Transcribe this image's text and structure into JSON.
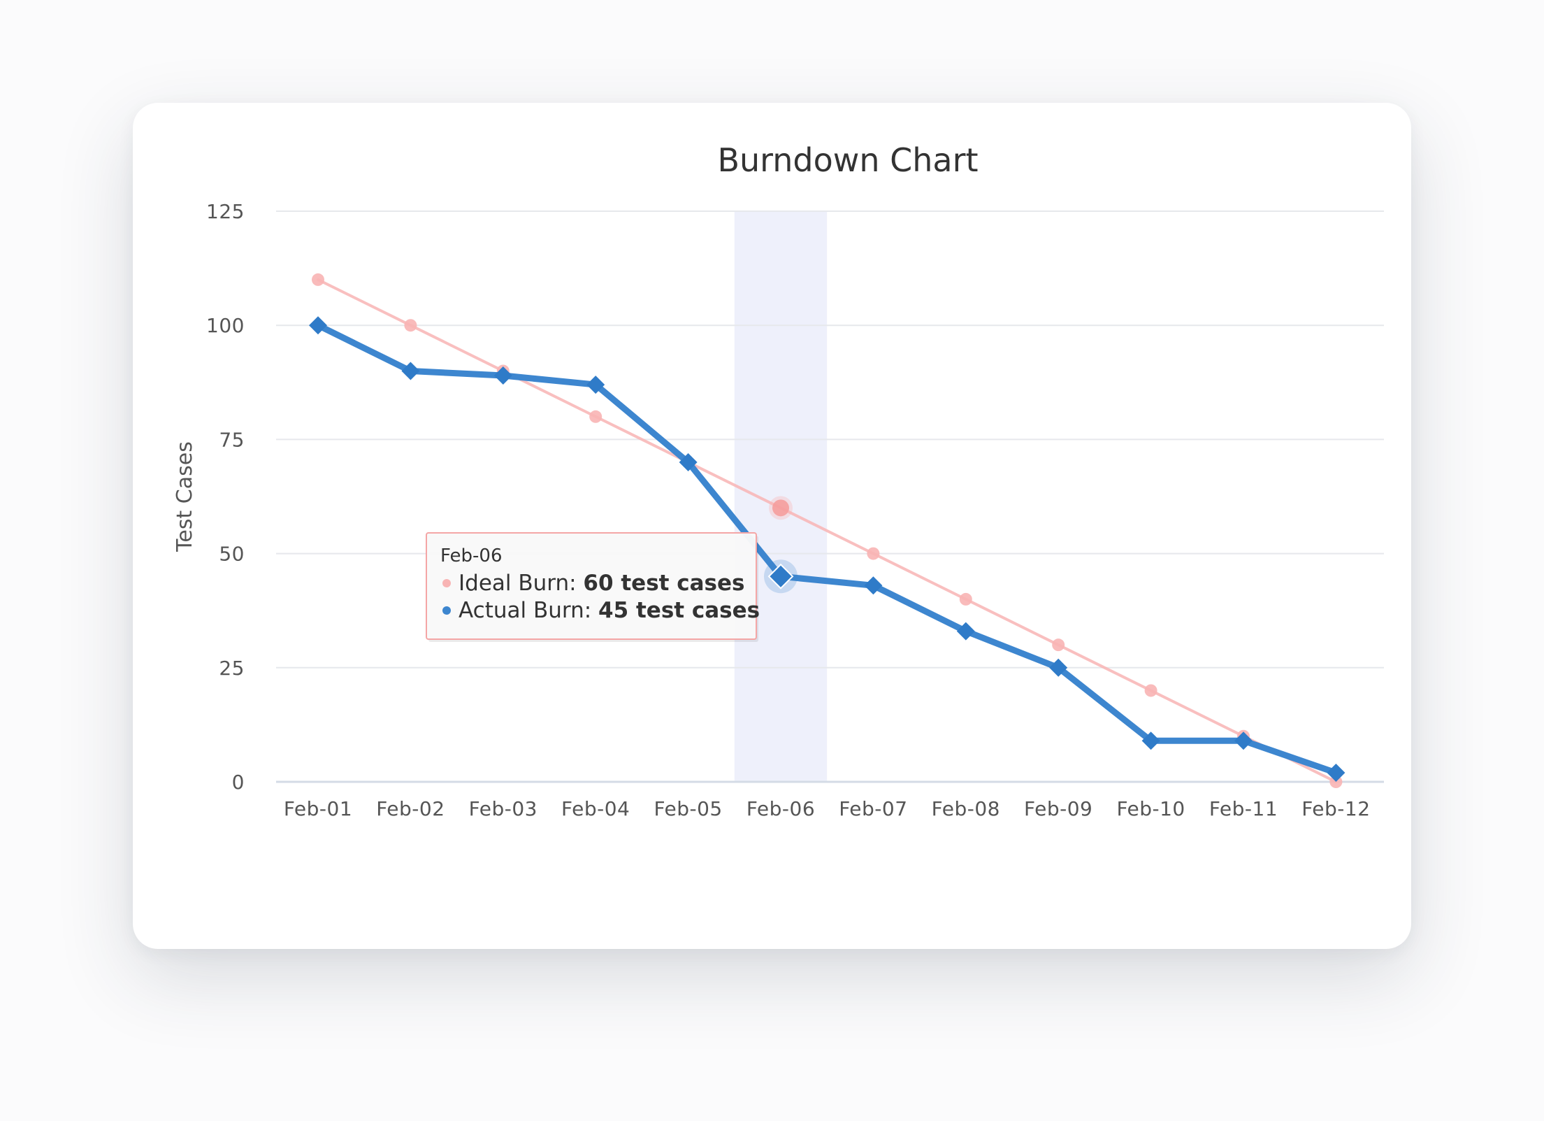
{
  "chart_data": {
    "type": "line",
    "title": "Burndown Chart",
    "xlabel": "",
    "ylabel": "Test Cases",
    "categories": [
      "Feb-01",
      "Feb-02",
      "Feb-03",
      "Feb-04",
      "Feb-05",
      "Feb-06",
      "Feb-07",
      "Feb-08",
      "Feb-09",
      "Feb-10",
      "Feb-11",
      "Feb-12"
    ],
    "ylim": [
      0,
      125
    ],
    "yticks": [
      0,
      25,
      50,
      75,
      100,
      125
    ],
    "grid": true,
    "series": [
      {
        "name": "Ideal Burn",
        "color": "#f8b4b4",
        "marker": "circle",
        "values": [
          110,
          100,
          90,
          80,
          70,
          60,
          50,
          40,
          30,
          20,
          10,
          0
        ]
      },
      {
        "name": "Actual Burn",
        "color": "#3d86cf",
        "marker": "diamond",
        "values": [
          100,
          90,
          89,
          87,
          70,
          45,
          43,
          33,
          25,
          9,
          9,
          2
        ]
      }
    ],
    "highlight": {
      "category": "Feb-06"
    },
    "tooltip": {
      "header": "Feb-06",
      "unit": "test cases",
      "rows": [
        {
          "series": "Ideal Burn",
          "value": 60,
          "dot_color": "#f8b4b4"
        },
        {
          "series": "Actual Burn",
          "value": 45,
          "dot_color": "#3d86cf"
        }
      ]
    }
  }
}
